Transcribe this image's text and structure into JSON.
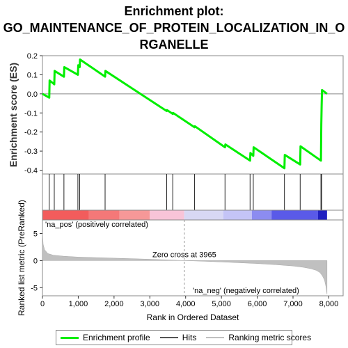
{
  "title_lines": [
    "Enrichment plot:",
    "GO_MAINTENANCE_OF_PROTEIN_LOCALIZATION_IN_O",
    "RGANELLE"
  ],
  "chart_data": {
    "type": "line",
    "es_panel": {
      "ylabel": "Enrichment score (ES)",
      "ylim": [
        -0.42,
        0.2
      ],
      "yticks": [
        0.2,
        0.1,
        0.0,
        -0.1,
        -0.2,
        -0.3,
        -0.4
      ],
      "ytick_labels": [
        "0.2",
        "0.1",
        "0.0",
        "-0.1",
        "-0.2",
        "-0.3",
        "-0.4"
      ],
      "line_color": "#00ee00",
      "x": [
        0,
        190,
        200,
        330,
        340,
        600,
        610,
        990,
        1000,
        1040,
        1050,
        1750,
        1760,
        3470,
        3480,
        3640,
        3650,
        4250,
        4260,
        5100,
        5110,
        5800,
        5810,
        5890,
        5900,
        6760,
        6770,
        7200,
        7210,
        7780,
        7790,
        7800,
        7810,
        7950
      ],
      "y": [
        0.0,
        -0.02,
        0.07,
        0.05,
        0.12,
        0.09,
        0.14,
        0.1,
        0.15,
        0.14,
        0.18,
        0.09,
        0.12,
        -0.09,
        -0.085,
        -0.105,
        -0.1,
        -0.175,
        -0.17,
        -0.28,
        -0.265,
        -0.35,
        -0.31,
        -0.325,
        -0.28,
        -0.39,
        -0.32,
        -0.37,
        -0.275,
        -0.35,
        -0.16,
        -0.06,
        0.02,
        0.0
      ]
    },
    "hits": [
      190,
      330,
      600,
      990,
      1040,
      1750,
      3470,
      3640,
      4250,
      5100,
      5800,
      5890,
      6760,
      7200,
      7780,
      7800
    ],
    "color_bar": {
      "segments": [
        {
          "start": 0,
          "end": 1300,
          "color": "#f25c5c"
        },
        {
          "start": 1300,
          "end": 2150,
          "color": "#f47878"
        },
        {
          "start": 2150,
          "end": 3000,
          "color": "#f69898"
        },
        {
          "start": 3000,
          "end": 3960,
          "color": "#f8c4d8"
        },
        {
          "start": 3960,
          "end": 5050,
          "color": "#d8d8f4"
        },
        {
          "start": 5050,
          "end": 5850,
          "color": "#c4c4f6"
        },
        {
          "start": 5850,
          "end": 6400,
          "color": "#8c8cf0"
        },
        {
          "start": 6400,
          "end": 7700,
          "color": "#5a5ae8"
        },
        {
          "start": 7700,
          "end": 7950,
          "color": "#2020c0"
        }
      ],
      "pos_label": "'na_pos' (positively correlated)",
      "neg_label": "'na_neg' (negatively correlated)"
    },
    "metric_panel": {
      "ylabel": "Ranked list metric (PreRanked)",
      "ylim": [
        -6.5,
        7.5
      ],
      "yticks": [
        5,
        0,
        -5
      ],
      "ytick_labels": [
        "5",
        "0",
        "-5"
      ],
      "fill_color": "#c0c0c0",
      "x": [
        0,
        20,
        60,
        150,
        300,
        600,
        1000,
        1500,
        2000,
        2500,
        3000,
        3500,
        3965,
        4500,
        5000,
        5500,
        6000,
        6500,
        7000,
        7300,
        7500,
        7650,
        7750,
        7820,
        7880,
        7920,
        7950
      ],
      "y": [
        5.2,
        3.0,
        2.0,
        1.3,
        1.0,
        0.8,
        0.65,
        0.55,
        0.45,
        0.35,
        0.25,
        0.12,
        0.0,
        -0.12,
        -0.25,
        -0.4,
        -0.55,
        -0.75,
        -1.0,
        -1.25,
        -1.5,
        -1.8,
        -2.2,
        -2.8,
        -3.6,
        -4.8,
        -6.2
      ],
      "zero_cross_label": "Zero cross at 3965",
      "zero_cross": 3965
    },
    "xlabel": "Rank in Ordered Dataset",
    "xlim": [
      0,
      8400
    ],
    "xticks": [
      0,
      1000,
      2000,
      3000,
      4000,
      5000,
      6000,
      7000,
      8000
    ],
    "xtick_labels": [
      "0",
      "1,000",
      "2,000",
      "3,000",
      "4,000",
      "5,000",
      "6,000",
      "7,000",
      "8,000"
    ]
  },
  "legend": [
    {
      "label": "Enrichment profile",
      "color": "#00ee00",
      "width": 3
    },
    {
      "label": "Hits",
      "color": "#555555",
      "width": 2
    },
    {
      "label": "Ranking metric scores",
      "color": "#c0c0c0",
      "width": 2
    }
  ]
}
